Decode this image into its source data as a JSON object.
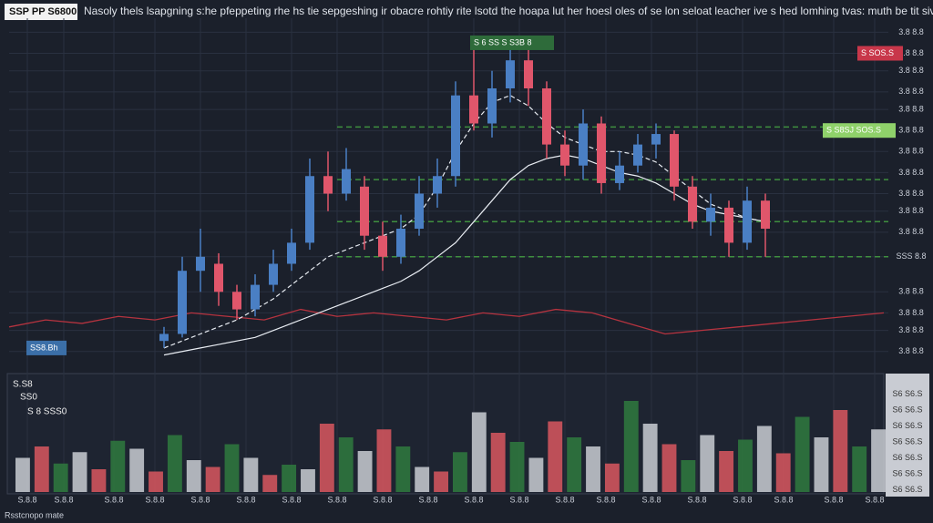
{
  "chart_data": {
    "type": "candlestick",
    "title": "SSP PP S6800",
    "subtitle": "Nasoly thels lsapgning s:he pfeppeting rhe hs tie sepgeshing ir obacre rohtiy rite lsotd the hoapa lut her hoesl oles of se lon seloat leacher ive s hed lomhing tvas: muth be tit sive oloct",
    "footer": "Rsstcnopo mate",
    "xlim": [
      0,
      965
    ],
    "x": [
      170,
      190,
      210,
      230,
      250,
      270,
      290,
      310,
      330,
      350,
      370,
      390,
      410,
      430,
      450,
      470,
      490,
      510,
      530,
      550,
      570,
      590,
      610,
      630,
      650,
      670,
      690,
      710,
      730,
      750,
      770,
      790,
      810,
      830
    ],
    "open": [
      8,
      10,
      28,
      30,
      22,
      17,
      24,
      30,
      36,
      55,
      50,
      52,
      38,
      32,
      40,
      50,
      55,
      78,
      70,
      80,
      88,
      80,
      64,
      58,
      70,
      53,
      58,
      64,
      67,
      52,
      42,
      46,
      36,
      48
    ],
    "high": [
      12,
      32,
      40,
      33,
      24,
      27,
      34,
      40,
      60,
      62,
      63,
      55,
      42,
      44,
      55,
      60,
      82,
      92,
      85,
      92,
      93,
      82,
      68,
      74,
      72,
      62,
      67,
      70,
      68,
      55,
      50,
      48,
      52,
      50
    ],
    "low": [
      6,
      9,
      22,
      18,
      14,
      15,
      22,
      28,
      34,
      45,
      48,
      34,
      28,
      30,
      38,
      46,
      52,
      68,
      66,
      76,
      75,
      60,
      55,
      54,
      50,
      51,
      56,
      60,
      48,
      40,
      38,
      32,
      34,
      32
    ],
    "close": [
      10,
      28,
      32,
      22,
      17,
      24,
      30,
      36,
      55,
      50,
      57,
      38,
      32,
      40,
      50,
      55,
      78,
      70,
      80,
      88,
      80,
      64,
      58,
      70,
      53,
      58,
      64,
      67,
      52,
      42,
      46,
      36,
      48,
      40
    ],
    "up_color": "#4a7fc4",
    "down_color": "#e0566b",
    "series": [
      {
        "name": "MA 1",
        "color": "#e8ecf2",
        "values": [
          6,
          8,
          10,
          12,
          14,
          17,
          20,
          24,
          28,
          32,
          34,
          36,
          38,
          40,
          44,
          52,
          62,
          70,
          76,
          78,
          75,
          70,
          66,
          64,
          62,
          62,
          61,
          59,
          55,
          51,
          47,
          45,
          43,
          42
        ]
      },
      {
        "name": "MA 2",
        "color": "#e8ecf2",
        "values": [
          4,
          5,
          6,
          7,
          8,
          9,
          11,
          13,
          15,
          17,
          19,
          21,
          23,
          25,
          28,
          32,
          36,
          42,
          48,
          54,
          58,
          60,
          61,
          60,
          58,
          56,
          55,
          53,
          50,
          47,
          45,
          44,
          43,
          42
        ]
      }
    ],
    "red_line": {
      "color": "#b5333f",
      "x": [
        0,
        40,
        80,
        120,
        160,
        200,
        240,
        280,
        320,
        360,
        400,
        440,
        480,
        520,
        560,
        600,
        640,
        680,
        720,
        760,
        800,
        840,
        880,
        920,
        960
      ],
      "values": [
        12,
        14,
        13,
        15,
        14,
        16,
        15,
        14,
        17,
        15,
        16,
        15,
        14,
        16,
        15,
        17,
        16,
        13,
        10,
        11,
        12,
        13,
        14,
        15,
        16
      ]
    },
    "levels": [
      69,
      54,
      42,
      32
    ],
    "level_color": "#3f8f3f",
    "ylim": [
      0,
      100
    ],
    "yticks": [
      {
        "value": 96,
        "label": "3.8 8.8"
      },
      {
        "value": 90,
        "label": "3.8 8.8"
      },
      {
        "value": 85,
        "label": "3.8 8.8"
      },
      {
        "value": 79,
        "label": "3.8 8.8"
      },
      {
        "value": 74,
        "label": "3.8 8.8"
      },
      {
        "value": 68,
        "label": "3.8 8.8"
      },
      {
        "value": 62,
        "label": "3.8 8.8"
      },
      {
        "value": 56,
        "label": "3.8 8.8"
      },
      {
        "value": 50,
        "label": "3.8 8.8"
      },
      {
        "value": 45,
        "label": "3.8 8.8"
      },
      {
        "value": 39,
        "label": "3.8 8.8"
      },
      {
        "value": 32,
        "label": "SSS 8.8"
      },
      {
        "value": 22,
        "label": "3.8 8.8"
      },
      {
        "value": 16,
        "label": "3.8 8.8"
      },
      {
        "value": 11,
        "label": "3.8 8.8"
      },
      {
        "value": 5,
        "label": "3.8 8.8"
      }
    ],
    "xticks": [
      {
        "value": 20,
        "label": "S.8.8"
      },
      {
        "value": 60,
        "label": "S.8.8"
      },
      {
        "value": 115,
        "label": "S.8.8"
      },
      {
        "value": 160,
        "label": "S.8.8"
      },
      {
        "value": 210,
        "label": "S.8.8"
      },
      {
        "value": 260,
        "label": "S.8.8"
      },
      {
        "value": 310,
        "label": "S.8.8"
      },
      {
        "value": 360,
        "label": "S.8.8"
      },
      {
        "value": 410,
        "label": "S.8.8"
      },
      {
        "value": 460,
        "label": "S.8.8"
      },
      {
        "value": 510,
        "label": "S.8.8"
      },
      {
        "value": 560,
        "label": "S.8.8"
      },
      {
        "value": 610,
        "label": "S.8.8"
      },
      {
        "value": 655,
        "label": "S.8.8"
      },
      {
        "value": 705,
        "label": "S.8.8"
      },
      {
        "value": 755,
        "label": "S.8.8"
      },
      {
        "value": 805,
        "label": "S.8.8"
      },
      {
        "value": 850,
        "label": "S.8.8"
      },
      {
        "value": 905,
        "label": "S.8.8"
      },
      {
        "value": 950,
        "label": "S.8.8"
      }
    ],
    "annotations": [
      {
        "text": "S 6 SS S S3B 8",
        "x": 510,
        "y": 93,
        "color": "#2e6b3a"
      },
      {
        "text": "S SOS.S",
        "x": 935,
        "y": 90,
        "color": "#c8374a"
      },
      {
        "text": "S S8SJ SOS.S",
        "x": 897,
        "y": 68,
        "color": "#8fd16a"
      },
      {
        "text": "SS8.Bh",
        "x": 23,
        "y": 6,
        "color": "#3b6fa8"
      }
    ],
    "volume": {
      "ylim": [
        0,
        100
      ],
      "yticks": [
        {
          "value": 86,
          "label": "S6 S6.S"
        },
        {
          "value": 72,
          "label": "S6 S6.S"
        },
        {
          "value": 58,
          "label": "S6 S6.S"
        },
        {
          "value": 44,
          "label": "S6 S6.S"
        },
        {
          "value": 30,
          "label": "S6 S6.S"
        },
        {
          "value": 16,
          "label": "S6 S6.S"
        },
        {
          "value": 2,
          "label": "S6 S6.S"
        }
      ],
      "values": [
        30,
        40,
        25,
        35,
        20,
        45,
        38,
        18,
        50,
        28,
        22,
        42,
        30,
        15,
        24,
        20,
        60,
        48,
        36,
        55,
        40,
        22,
        18,
        35,
        70,
        52,
        44,
        30,
        62,
        48,
        40,
        25,
        80,
        60,
        42,
        28,
        50,
        36,
        46,
        58,
        34,
        66,
        48,
        72,
        40,
        55
      ],
      "colors": [
        "#c9ccd2",
        "#d9575f",
        "#2f7a3e",
        "#c9ccd2",
        "#d9575f",
        "#2f7a3e"
      ],
      "labels": [
        "S.S8",
        "SS0",
        "S 8 SSS0"
      ]
    }
  }
}
